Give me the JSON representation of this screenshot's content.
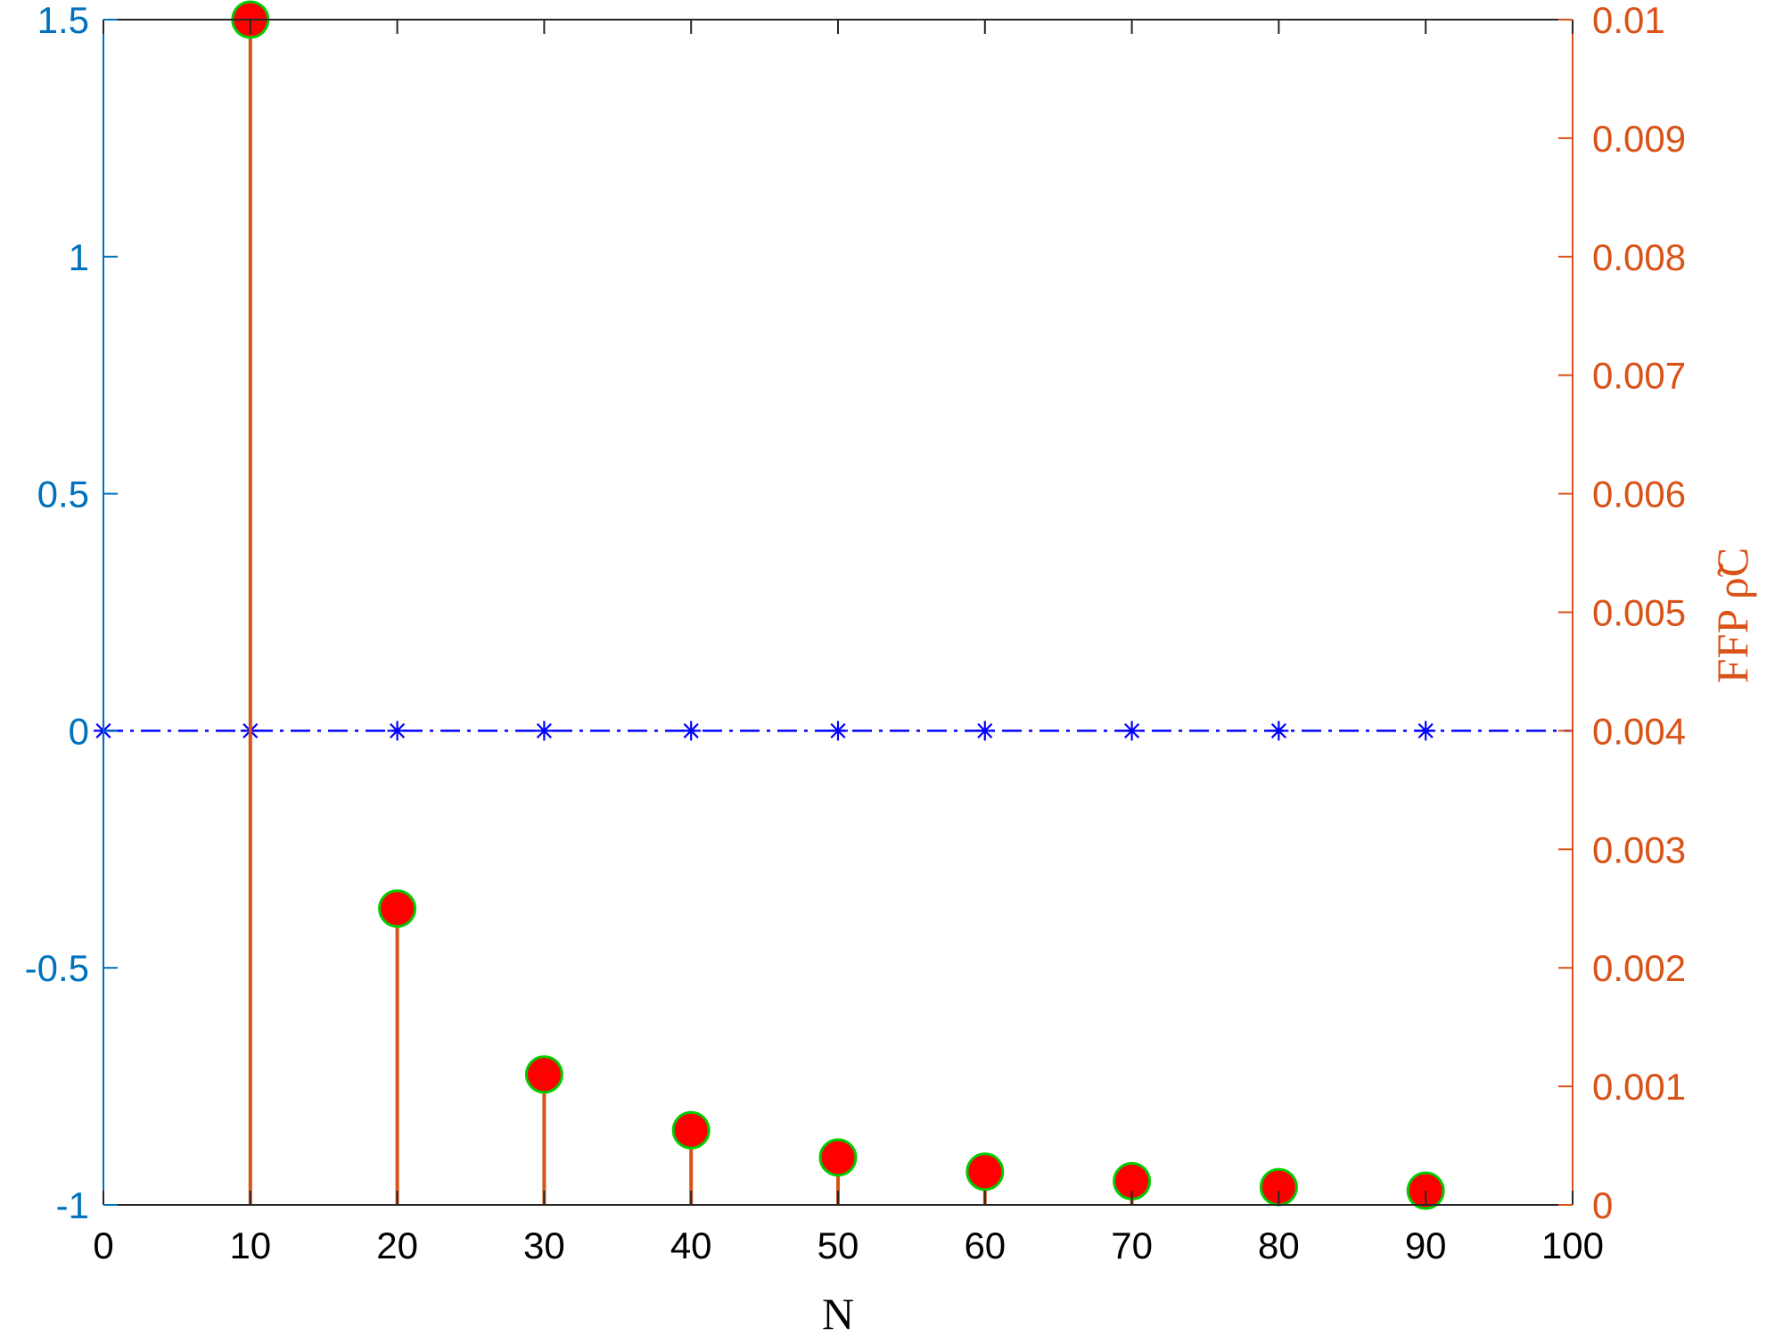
{
  "chart_data": {
    "type": "stem",
    "xlabel": "N",
    "ylabel_right": "FFP ρ̃C",
    "xlim": [
      0,
      100
    ],
    "ylim_left": [
      -1,
      1.5
    ],
    "ylim_right": [
      0,
      0.01
    ],
    "x_ticks": [
      "0",
      "10",
      "20",
      "30",
      "40",
      "50",
      "60",
      "70",
      "80",
      "90",
      "100"
    ],
    "left_ticks": [
      {
        "value": 1.5,
        "label": "1.5"
      },
      {
        "value": 1,
        "label": "1"
      },
      {
        "value": 0.5,
        "label": "0.5"
      },
      {
        "value": 0,
        "label": "0"
      },
      {
        "value": -0.5,
        "label": "-0.5"
      },
      {
        "value": -1,
        "label": "-1"
      }
    ],
    "right_ticks": [
      {
        "value": 0.01,
        "label": "0.01"
      },
      {
        "value": 0.009,
        "label": "0.009"
      },
      {
        "value": 0.008,
        "label": "0.008"
      },
      {
        "value": 0.007,
        "label": "0.007"
      },
      {
        "value": 0.006,
        "label": "0.006"
      },
      {
        "value": 0.005,
        "label": "0.005"
      },
      {
        "value": 0.004,
        "label": "0.004"
      },
      {
        "value": 0.003,
        "label": "0.003"
      },
      {
        "value": 0.002,
        "label": "0.002"
      },
      {
        "value": 0.001,
        "label": "0.001"
      },
      {
        "value": 0,
        "label": "0"
      }
    ],
    "series": [
      {
        "axis": "left",
        "style": "dash-dot line with asterisk markers",
        "color": "#0000FF",
        "x": [
          0,
          10,
          20,
          30,
          40,
          50,
          60,
          70,
          80,
          90,
          100
        ],
        "values": [
          0,
          0,
          0,
          0,
          0,
          0,
          0,
          0,
          0,
          0,
          0
        ],
        "marker_x": [
          0,
          10,
          20,
          30,
          40,
          50,
          60,
          70,
          80,
          90
        ]
      },
      {
        "axis": "right",
        "style": "stem with filled circle markers",
        "color": "#D95319",
        "marker_fill": "#FF0000",
        "marker_edge": "#00CC00",
        "x": [
          10,
          20,
          30,
          40,
          50,
          60,
          70,
          80,
          90
        ],
        "values": [
          0.01,
          0.0025,
          0.0011,
          0.00063,
          0.0004,
          0.00028,
          0.0002,
          0.00015,
          0.00012
        ]
      }
    ]
  }
}
